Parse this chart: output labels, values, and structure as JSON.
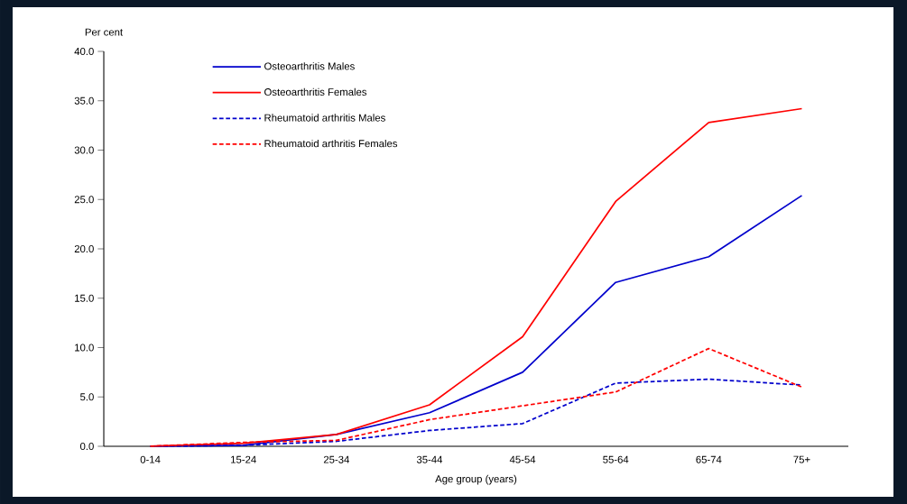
{
  "chart_data": {
    "type": "line",
    "xlabel": "Age group (years)",
    "ylabel": "Per cent",
    "categories": [
      "0-14",
      "15-24",
      "25-34",
      "35-44",
      "45-54",
      "55-64",
      "65-74",
      "75+"
    ],
    "series": [
      {
        "name": "Osteoarthritis Males",
        "color": "#0000cc",
        "line_style": "solid",
        "values": [
          0.0,
          0.1,
          1.2,
          3.4,
          7.5,
          16.6,
          19.2,
          25.4
        ]
      },
      {
        "name": "Osteoarthritis Females",
        "color": "#ff0000",
        "line_style": "solid",
        "values": [
          0.0,
          0.3,
          1.2,
          4.2,
          11.1,
          24.8,
          32.8,
          34.2
        ]
      },
      {
        "name": "Rheumatoid arthritis Males",
        "color": "#0000cc",
        "line_style": "dashed",
        "values": [
          0.0,
          0.1,
          0.5,
          1.6,
          2.3,
          6.4,
          6.8,
          6.2
        ]
      },
      {
        "name": "Rheumatoid arthritis Females",
        "color": "#ff0000",
        "line_style": "dashed",
        "values": [
          0.0,
          0.4,
          0.6,
          2.7,
          4.1,
          5.5,
          9.9,
          6.0
        ]
      }
    ],
    "ylim": [
      0,
      40
    ],
    "yticks": [
      {
        "value": 0,
        "label": "0.0"
      },
      {
        "value": 5,
        "label": "5.0"
      },
      {
        "value": 10,
        "label": "10.0"
      },
      {
        "value": 15,
        "label": "15.0"
      },
      {
        "value": 20,
        "label": "20.0"
      },
      {
        "value": 25,
        "label": "25.0"
      },
      {
        "value": 30,
        "label": "30.0"
      },
      {
        "value": 35,
        "label": "35.0"
      },
      {
        "value": 40,
        "label": "40.0"
      }
    ],
    "grid": false,
    "legend": "top left",
    "marker": "none"
  }
}
